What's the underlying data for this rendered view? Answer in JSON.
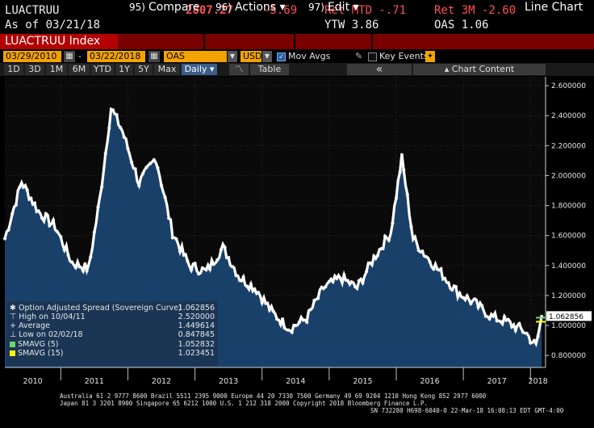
{
  "header": {
    "ticker": "LUACTRUU",
    "as_of": "As of 03/21/18",
    "price": "2807.27",
    "change": "-5.69",
    "ret_mtd": "Ret MTD -.71",
    "ret_3m": "Ret 3M -2.60",
    "ytw": "YTW 3.86",
    "oas": "OAS 1.06"
  },
  "menu": {
    "index_label": "LUACTRUU Index",
    "compare_num": "95)",
    "compare": "Compare",
    "actions_num": "96)",
    "actions": "Actions",
    "edit_num": "97)",
    "edit": "Edit",
    "chart_type": "Line Chart"
  },
  "controls": {
    "start_date": "03/29/2010",
    "end_date": "03/22/2018",
    "field": "OAS",
    "currency": "USD",
    "mov_avgs": "Mov Avgs",
    "key_events": "Key Events"
  },
  "periods": [
    "1D",
    "3D",
    "1M",
    "6M",
    "YTD",
    "1Y",
    "5Y",
    "Max"
  ],
  "frequency": "Daily",
  "table_label": "Table",
  "collapse_label": "«",
  "chart_content_label": "Chart Content",
  "chart_data": {
    "type": "area",
    "x": [
      "2010-03",
      "2010-06",
      "2010-09",
      "2010-12",
      "2011-03",
      "2011-06",
      "2011-08",
      "2011-10",
      "2011-12",
      "2012-03",
      "2012-06",
      "2012-09",
      "2012-12",
      "2013-03",
      "2013-06",
      "2013-09",
      "2013-12",
      "2014-03",
      "2014-06",
      "2014-09",
      "2014-12",
      "2015-03",
      "2015-06",
      "2015-09",
      "2015-12",
      "2016-02",
      "2016-04",
      "2016-06",
      "2016-09",
      "2016-12",
      "2017-03",
      "2017-06",
      "2017-09",
      "2017-12",
      "2018-02",
      "2018-03"
    ],
    "values": [
      1.58,
      1.96,
      1.76,
      1.66,
      1.42,
      1.38,
      1.85,
      2.45,
      2.3,
      1.95,
      2.12,
      1.62,
      1.4,
      1.36,
      1.52,
      1.32,
      1.24,
      1.08,
      0.98,
      1.05,
      1.25,
      1.32,
      1.25,
      1.45,
      1.62,
      2.12,
      1.58,
      1.48,
      1.35,
      1.22,
      1.15,
      1.06,
      1.02,
      0.96,
      0.86,
      1.06
    ],
    "x_ticks": [
      "2010",
      "2011",
      "2012",
      "2013",
      "2014",
      "2015",
      "2016",
      "2017",
      "2018"
    ],
    "y_ticks": [
      "0.800000",
      "1.000000",
      "1.200000",
      "1.400000",
      "1.600000",
      "1.800000",
      "2.000000",
      "2.200000",
      "2.400000",
      "2.600000"
    ],
    "ylim": [
      0.72,
      2.66
    ],
    "last_value_label": "1.062856",
    "series_color": "#ffffff",
    "sma5_color": "#6fd36f",
    "sma15_color": "#ffff00",
    "fill_color": "#1b4673"
  },
  "legend": {
    "series_name": "Option Adjusted Spread (Sovereign Curve)",
    "series_value": "1.062856",
    "high_label": "High on 10/04/11",
    "high_value": "2.520000",
    "average_label": "Average",
    "average_value": "1.449614",
    "low_label": "Low on 02/02/18",
    "low_value": "0.847845",
    "sma5_label": "SMAVG (5)",
    "sma5_value": "1.052832",
    "sma15_label": "SMAVG (15)",
    "sma15_value": "1.023451"
  },
  "footer": {
    "line1": "Australia 61 2 9777 8600 Brazil 5511 2395 9000 Europe 44 20 7330 7500 Germany 49 69 9204 1210 Hong Kong 852 2977 6000",
    "line2": "Japan 81 3 3201 8900        Singapore 65 6212 1000        U.S. 1 212 318 2000        Copyright 2018 Bloomberg Finance L.P.",
    "line3": "SN 732280 H698-6040-0 22-Mar-18 16:08:13 EDT  GMT-4:00"
  }
}
